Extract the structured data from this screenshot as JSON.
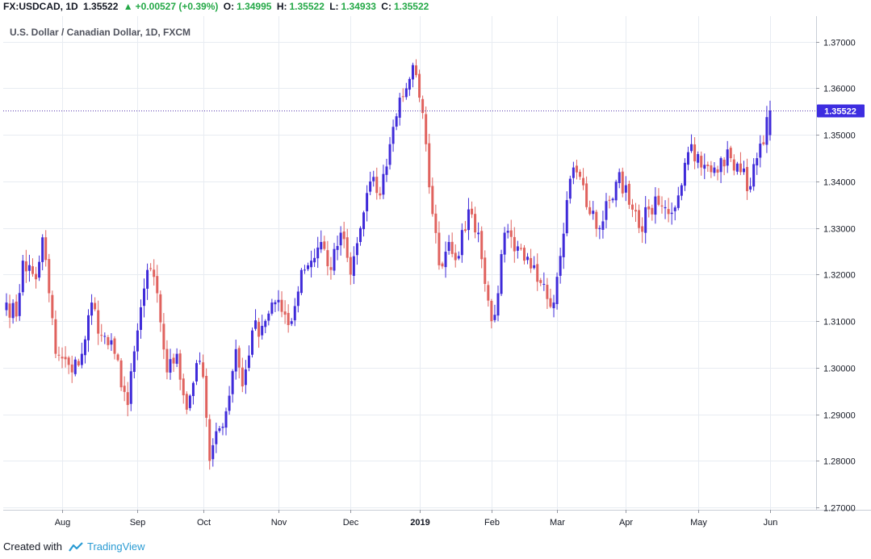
{
  "header": {
    "symbol": "FX:USDCAD, 1D",
    "last": "1.35522",
    "change": "+0.00527 (+0.39%)",
    "o_label": "O:",
    "o_value": "1.34995",
    "h_label": "H:",
    "h_value": "1.35522",
    "l_label": "L:",
    "l_value": "1.34933",
    "c_label": "C:",
    "c_value": "1.35522"
  },
  "footer": {
    "prefix": "Created with",
    "brand": "TradingView"
  },
  "colors": {
    "up": "#3f2bd9",
    "down": "#e0625e",
    "grid": "#e8ecf2",
    "price_line": "#5a3bb0",
    "last_bg": "#3d2de0",
    "header_up": "#23a846"
  },
  "chart_data": {
    "type": "candlestick",
    "title": "U.S. Dollar / Canadian Dollar, 1D, FXCM",
    "ylim": [
      1.2695,
      1.3755
    ],
    "y_ticks": [
      1.27,
      1.28,
      1.29,
      1.3,
      1.31,
      1.32,
      1.33,
      1.34,
      1.35,
      1.36,
      1.37
    ],
    "y_tick_labels": [
      "1.27000",
      "1.28000",
      "1.29000",
      "1.30000",
      "1.31000",
      "1.32000",
      "1.33000",
      "1.34000",
      "1.35000",
      "1.36000",
      "1.37000"
    ],
    "x_ticks": [
      {
        "label": "Aug",
        "index": 17,
        "bold": false
      },
      {
        "label": "Sep",
        "index": 40,
        "bold": false
      },
      {
        "label": "Oct",
        "index": 60,
        "bold": false
      },
      {
        "label": "Nov",
        "index": 83,
        "bold": false
      },
      {
        "label": "Dec",
        "index": 105,
        "bold": false
      },
      {
        "label": "2019",
        "index": 126,
        "bold": true
      },
      {
        "label": "Feb",
        "index": 148,
        "bold": false
      },
      {
        "label": "Mar",
        "index": 168,
        "bold": false
      },
      {
        "label": "Apr",
        "index": 189,
        "bold": false
      },
      {
        "label": "May",
        "index": 211,
        "bold": false
      },
      {
        "label": "Jun",
        "index": 233,
        "bold": false
      }
    ],
    "last_price": 1.35522,
    "last_price_label": "1.35522",
    "anchors": [
      [
        0,
        1.314
      ],
      [
        3,
        1.311
      ],
      [
        5,
        1.323
      ],
      [
        9,
        1.319
      ],
      [
        11,
        1.328
      ],
      [
        13,
        1.316
      ],
      [
        15,
        1.303
      ],
      [
        17,
        1.302
      ],
      [
        20,
        1.299
      ],
      [
        23,
        1.303
      ],
      [
        26,
        1.314
      ],
      [
        29,
        1.307
      ],
      [
        33,
        1.303
      ],
      [
        37,
        1.292
      ],
      [
        40,
        1.308
      ],
      [
        43,
        1.321
      ],
      [
        46,
        1.316
      ],
      [
        49,
        1.299
      ],
      [
        52,
        1.303
      ],
      [
        55,
        1.291
      ],
      [
        58,
        1.301
      ],
      [
        60,
        1.298
      ],
      [
        62,
        1.28
      ],
      [
        65,
        1.287
      ],
      [
        68,
        1.294
      ],
      [
        70,
        1.304
      ],
      [
        72,
        1.296
      ],
      [
        75,
        1.308
      ],
      [
        78,
        1.309
      ],
      [
        81,
        1.314
      ],
      [
        84,
        1.312
      ],
      [
        87,
        1.31
      ],
      [
        90,
        1.321
      ],
      [
        93,
        1.323
      ],
      [
        96,
        1.327
      ],
      [
        99,
        1.321
      ],
      [
        102,
        1.329
      ],
      [
        105,
        1.32
      ],
      [
        108,
        1.33
      ],
      [
        111,
        1.34
      ],
      [
        114,
        1.337
      ],
      [
        117,
        1.348
      ],
      [
        120,
        1.358
      ],
      [
        122,
        1.36
      ],
      [
        124,
        1.365
      ],
      [
        126,
        1.358
      ],
      [
        128,
        1.348
      ],
      [
        130,
        1.333
      ],
      [
        132,
        1.322
      ],
      [
        135,
        1.327
      ],
      [
        138,
        1.324
      ],
      [
        141,
        1.334
      ],
      [
        144,
        1.329
      ],
      [
        146,
        1.318
      ],
      [
        148,
        1.31
      ],
      [
        150,
        1.316
      ],
      [
        152,
        1.329
      ],
      [
        155,
        1.325
      ],
      [
        158,
        1.323
      ],
      [
        161,
        1.322
      ],
      [
        164,
        1.318
      ],
      [
        167,
        1.314
      ],
      [
        169,
        1.324
      ],
      [
        171,
        1.336
      ],
      [
        173,
        1.343
      ],
      [
        175,
        1.341
      ],
      [
        178,
        1.333
      ],
      [
        181,
        1.33
      ],
      [
        184,
        1.336
      ],
      [
        187,
        1.342
      ],
      [
        190,
        1.335
      ],
      [
        193,
        1.33
      ],
      [
        196,
        1.334
      ],
      [
        199,
        1.335
      ],
      [
        202,
        1.333
      ],
      [
        205,
        1.337
      ],
      [
        207,
        1.344
      ],
      [
        209,
        1.348
      ],
      [
        212,
        1.343
      ],
      [
        215,
        1.342
      ],
      [
        218,
        1.345
      ],
      [
        221,
        1.345
      ],
      [
        224,
        1.342
      ],
      [
        227,
        1.339
      ],
      [
        229,
        1.345
      ],
      [
        231,
        1.348
      ],
      [
        233,
        1.3552
      ]
    ]
  }
}
